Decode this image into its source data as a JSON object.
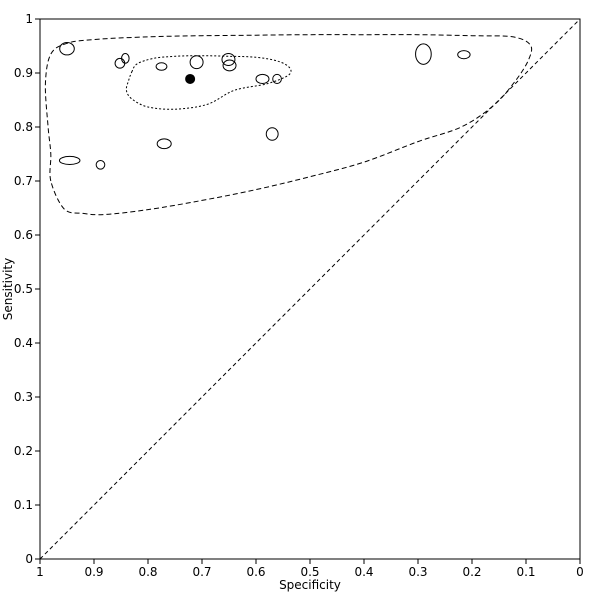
{
  "chart_data": {
    "type": "scatter",
    "subtype": "sroc",
    "xlabel": "Specificity",
    "ylabel": "Sensitivity",
    "xlim": [
      1,
      0
    ],
    "ylim": [
      0,
      1
    ],
    "x_reversed": true,
    "x_ticks": [
      1,
      0.9,
      0.8,
      0.7,
      0.6,
      0.5,
      0.4,
      0.3,
      0.2,
      0.1,
      0
    ],
    "y_ticks": [
      0,
      0.1,
      0.2,
      0.3,
      0.4,
      0.5,
      0.6,
      0.7,
      0.8,
      0.9,
      1
    ],
    "x_tick_labels": [
      "1",
      "0.9",
      "0.8",
      "0.7",
      "0.6",
      "0.5",
      "0.4",
      "0.3",
      "0.2",
      "0.1",
      "0"
    ],
    "y_tick_labels": [
      "0",
      "0.1",
      "0.2",
      "0.3",
      "0.4",
      "0.5",
      "0.6",
      "0.7",
      "0.8",
      "0.9",
      "1"
    ],
    "grid": false,
    "legend": "none",
    "studies": [
      {
        "specificity": 0.95,
        "sensitivity": 0.945,
        "rx": 0.0135,
        "ry": 0.0115
      },
      {
        "specificity": 0.852,
        "sensitivity": 0.918,
        "rx": 0.009,
        "ry": 0.009
      },
      {
        "specificity": 0.842,
        "sensitivity": 0.927,
        "rx": 0.007,
        "ry": 0.009
      },
      {
        "specificity": 0.775,
        "sensitivity": 0.912,
        "rx": 0.01,
        "ry": 0.007
      },
      {
        "specificity": 0.71,
        "sensitivity": 0.92,
        "rx": 0.012,
        "ry": 0.012
      },
      {
        "specificity": 0.651,
        "sensitivity": 0.925,
        "rx": 0.012,
        "ry": 0.011
      },
      {
        "specificity": 0.649,
        "sensitivity": 0.914,
        "rx": 0.012,
        "ry": 0.01
      },
      {
        "specificity": 0.588,
        "sensitivity": 0.889,
        "rx": 0.012,
        "ry": 0.0085
      },
      {
        "specificity": 0.561,
        "sensitivity": 0.889,
        "rx": 0.008,
        "ry": 0.0085
      },
      {
        "specificity": 0.29,
        "sensitivity": 0.935,
        "rx": 0.0145,
        "ry": 0.019
      },
      {
        "specificity": 0.215,
        "sensitivity": 0.934,
        "rx": 0.0115,
        "ry": 0.0075
      },
      {
        "specificity": 0.57,
        "sensitivity": 0.787,
        "rx": 0.011,
        "ry": 0.0115
      },
      {
        "specificity": 0.77,
        "sensitivity": 0.769,
        "rx": 0.013,
        "ry": 0.009
      },
      {
        "specificity": 0.945,
        "sensitivity": 0.738,
        "rx": 0.019,
        "ry": 0.0075
      },
      {
        "specificity": 0.888,
        "sensitivity": 0.73,
        "rx": 0.008,
        "ry": 0.008
      }
    ],
    "summary_point": {
      "specificity": 0.722,
      "sensitivity": 0.889
    },
    "confidence_region": [
      [
        0.83,
        0.902
      ],
      [
        0.82,
        0.917
      ],
      [
        0.79,
        0.927
      ],
      [
        0.75,
        0.931
      ],
      [
        0.7,
        0.932
      ],
      [
        0.65,
        0.931
      ],
      [
        0.6,
        0.929
      ],
      [
        0.56,
        0.922
      ],
      [
        0.538,
        0.91
      ],
      [
        0.54,
        0.896
      ],
      [
        0.58,
        0.88
      ],
      [
        0.64,
        0.868
      ],
      [
        0.69,
        0.842
      ],
      [
        0.75,
        0.833
      ],
      [
        0.8,
        0.837
      ],
      [
        0.83,
        0.852
      ],
      [
        0.84,
        0.868
      ],
      [
        0.836,
        0.886
      ]
    ],
    "prediction_region": [
      [
        0.98,
        0.7
      ],
      [
        0.98,
        0.75
      ],
      [
        0.985,
        0.8
      ],
      [
        0.99,
        0.88
      ],
      [
        0.98,
        0.935
      ],
      [
        0.95,
        0.955
      ],
      [
        0.9,
        0.962
      ],
      [
        0.8,
        0.967
      ],
      [
        0.7,
        0.969
      ],
      [
        0.6,
        0.97
      ],
      [
        0.5,
        0.971
      ],
      [
        0.4,
        0.971
      ],
      [
        0.3,
        0.971
      ],
      [
        0.2,
        0.969
      ],
      [
        0.125,
        0.967
      ],
      [
        0.092,
        0.952
      ],
      [
        0.095,
        0.925
      ],
      [
        0.12,
        0.885
      ],
      [
        0.16,
        0.84
      ],
      [
        0.22,
        0.8
      ],
      [
        0.3,
        0.773
      ],
      [
        0.4,
        0.735
      ],
      [
        0.5,
        0.708
      ],
      [
        0.6,
        0.684
      ],
      [
        0.7,
        0.664
      ],
      [
        0.8,
        0.647
      ],
      [
        0.88,
        0.638
      ],
      [
        0.92,
        0.64
      ],
      [
        0.955,
        0.648
      ]
    ],
    "diagonal": {
      "from": [
        1,
        0
      ],
      "to": [
        0,
        1
      ]
    }
  }
}
